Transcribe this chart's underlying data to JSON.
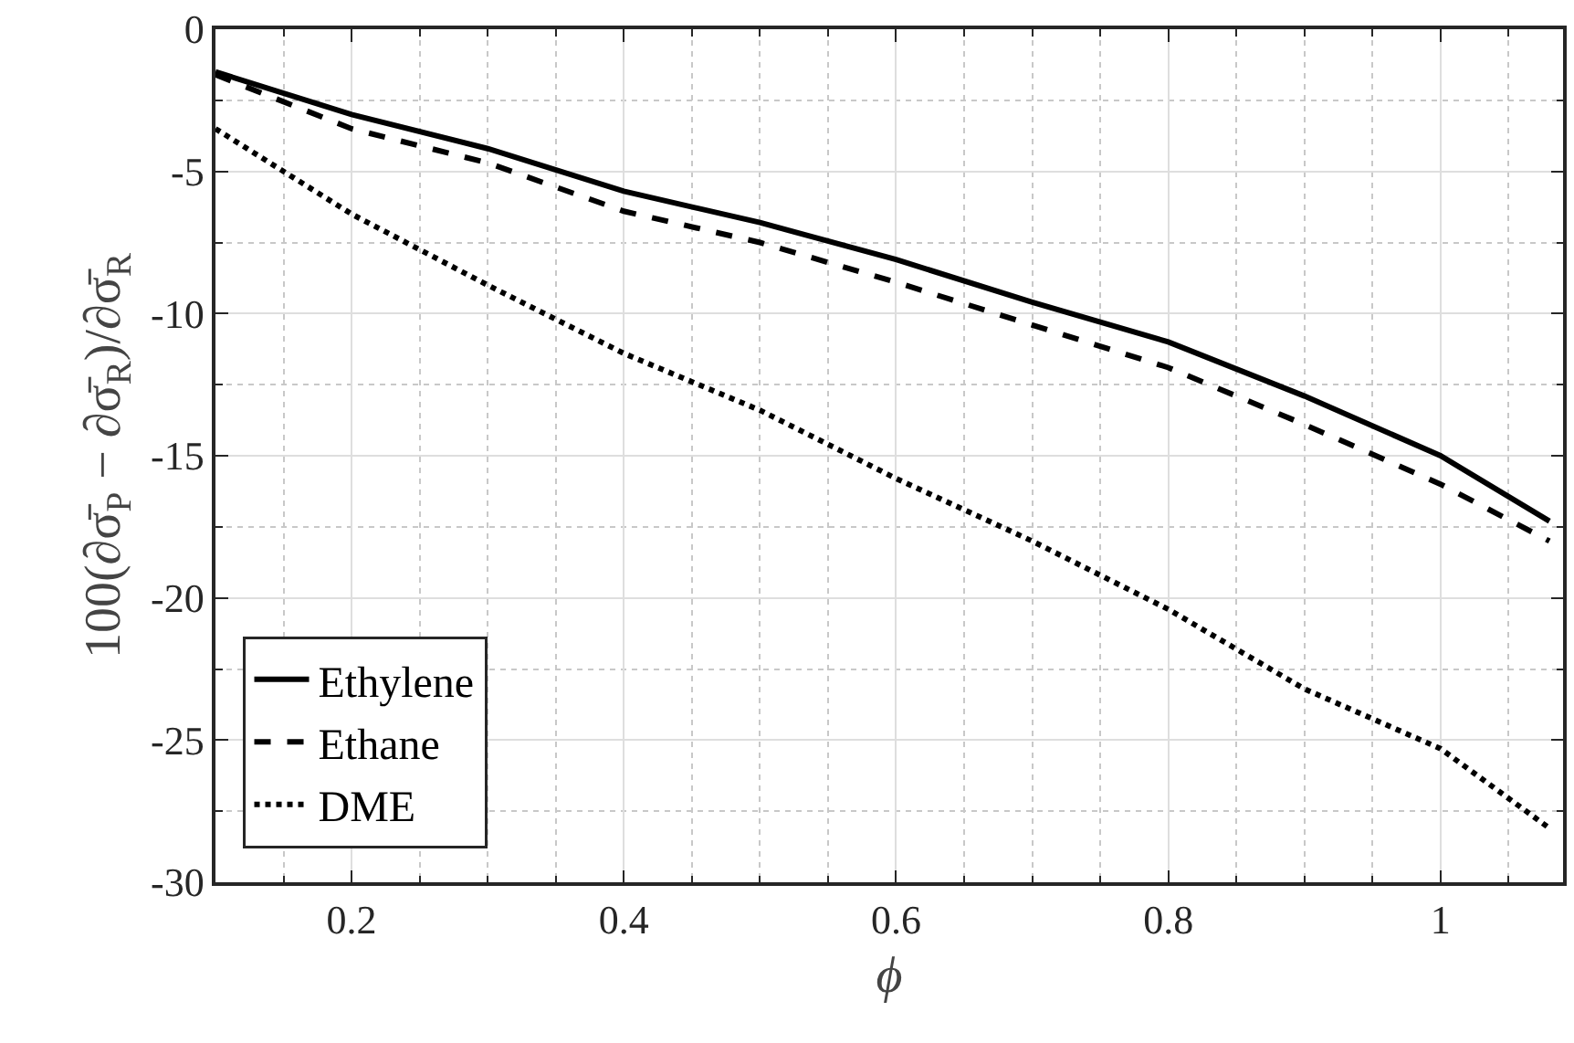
{
  "chart_data": {
    "type": "line",
    "xlabel": "ϕ",
    "ylabel": "100(∂σ̄$_{P}$ − ∂σ̄$_{R}$)/∂σ̄$_{R}$",
    "x": [
      0.1,
      0.2,
      0.3,
      0.4,
      0.5,
      0.6,
      0.7,
      0.8,
      0.9,
      1.0,
      1.08
    ],
    "series": [
      {
        "name": "Ethylene",
        "color": "#000000",
        "line_style": "solid",
        "values": [
          -1.5,
          -3.0,
          -4.2,
          -5.7,
          -6.8,
          -8.1,
          -9.6,
          -11.0,
          -12.9,
          -15.0,
          -17.3
        ]
      },
      {
        "name": "Ethane",
        "color": "#000000",
        "line_style": "dashed",
        "values": [
          -1.6,
          -3.5,
          -4.7,
          -6.4,
          -7.5,
          -8.9,
          -10.4,
          -11.9,
          -13.9,
          -16.0,
          -18.0
        ]
      },
      {
        "name": "DME",
        "color": "#000000",
        "line_style": "dotted",
        "values": [
          -3.5,
          -6.5,
          -9.0,
          -11.4,
          -13.4,
          -15.8,
          -18.0,
          -20.4,
          -23.2,
          -25.3,
          -28.1
        ]
      }
    ],
    "xlim": [
      0.1,
      1.09
    ],
    "xticks": [
      {
        "value": 0.15,
        "label": null
      },
      0.2,
      {
        "value": 0.25,
        "label": null
      },
      {
        "value": 0.3,
        "label": null
      },
      {
        "value": 0.35,
        "label": null
      },
      0.4,
      {
        "value": 0.45,
        "label": null
      },
      {
        "value": 0.5,
        "label": null
      },
      {
        "value": 0.55,
        "label": null
      },
      0.6,
      {
        "value": 0.65,
        "label": null
      },
      {
        "value": 0.7,
        "label": null
      },
      {
        "value": 0.75,
        "label": null
      },
      0.8,
      {
        "value": 0.85,
        "label": null
      },
      {
        "value": 0.9,
        "label": null
      },
      {
        "value": 0.95,
        "label": null
      },
      1,
      {
        "value": 1.05,
        "label": null
      }
    ],
    "ylim": [
      -30,
      0
    ],
    "yticks": [
      -30,
      {
        "value": -27.5,
        "label": null
      },
      -25,
      {
        "value": -22.5,
        "label": null
      },
      -20,
      {
        "value": -17.5,
        "label": null
      },
      -15,
      {
        "value": -12.5,
        "label": null
      },
      -10,
      {
        "value": -7.5,
        "label": null
      },
      -5,
      {
        "value": -2.5,
        "label": null
      },
      0
    ],
    "grid": true,
    "legend": "bottom left",
    "marker": "none"
  }
}
